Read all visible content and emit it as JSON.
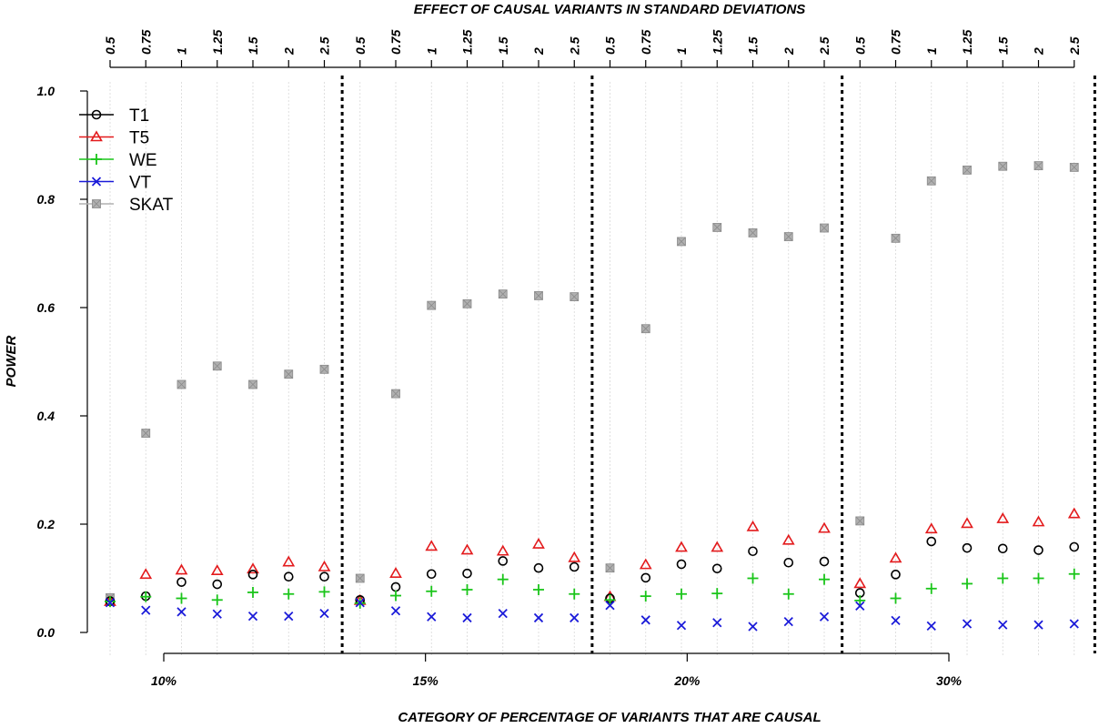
{
  "chart_data": {
    "type": "scatter",
    "title": "",
    "xlabel": "CATEGORY OF PERCENTAGE OF VARIANTS THAT ARE CAUSAL",
    "top_axis_label": "EFFECT OF CAUSAL VARIANTS IN STANDARD DEVIATIONS",
    "ylabel": "POWER",
    "ylim": [
      0,
      1
    ],
    "yticks": [
      "0.0",
      "0.2",
      "0.4",
      "0.6",
      "0.8",
      "1.0"
    ],
    "groups": [
      "10%",
      "15%",
      "20%",
      "30%"
    ],
    "effects": [
      "0.5",
      "0.75",
      "1",
      "1.25",
      "1.5",
      "2",
      "2.5"
    ],
    "legend_position": "top-left",
    "series": [
      {
        "name": "T1",
        "color": "#000000",
        "marker": "circle",
        "values": [
          0.058,
          0.067,
          0.093,
          0.089,
          0.107,
          0.103,
          0.103,
          0.06,
          0.084,
          0.108,
          0.109,
          0.132,
          0.119,
          0.121,
          0.063,
          0.101,
          0.126,
          0.118,
          0.15,
          0.129,
          0.131,
          0.073,
          0.107,
          0.168,
          0.156,
          0.155,
          0.152,
          0.158
        ]
      },
      {
        "name": "T5",
        "color": "#e31a1c",
        "marker": "triangle",
        "values": [
          0.057,
          0.107,
          0.115,
          0.114,
          0.117,
          0.13,
          0.121,
          0.059,
          0.109,
          0.159,
          0.152,
          0.15,
          0.163,
          0.138,
          0.066,
          0.125,
          0.157,
          0.157,
          0.195,
          0.17,
          0.192,
          0.09,
          0.137,
          0.191,
          0.201,
          0.21,
          0.204,
          0.219
        ]
      },
      {
        "name": "WE",
        "color": "#1ac51a",
        "marker": "plus",
        "values": [
          0.057,
          0.066,
          0.063,
          0.06,
          0.074,
          0.071,
          0.075,
          0.054,
          0.068,
          0.076,
          0.079,
          0.098,
          0.079,
          0.071,
          0.06,
          0.067,
          0.071,
          0.072,
          0.1,
          0.071,
          0.098,
          0.059,
          0.063,
          0.081,
          0.09,
          0.1,
          0.1,
          0.108
        ]
      },
      {
        "name": "VT",
        "color": "#1a1ad9",
        "marker": "x",
        "values": [
          0.055,
          0.041,
          0.038,
          0.034,
          0.03,
          0.03,
          0.035,
          0.055,
          0.04,
          0.029,
          0.027,
          0.035,
          0.027,
          0.027,
          0.05,
          0.023,
          0.013,
          0.018,
          0.011,
          0.02,
          0.029,
          0.049,
          0.022,
          0.012,
          0.016,
          0.014,
          0.014,
          0.016
        ]
      },
      {
        "name": "SKAT",
        "color": "#b0b0b0",
        "marker": "square",
        "values": [
          0.064,
          0.368,
          0.458,
          0.492,
          0.458,
          0.477,
          0.486,
          0.1,
          0.441,
          0.604,
          0.607,
          0.625,
          0.622,
          0.62,
          0.119,
          0.561,
          0.722,
          0.748,
          0.738,
          0.731,
          0.747,
          0.206,
          0.728,
          0.834,
          0.854,
          0.861,
          0.862,
          0.859
        ]
      }
    ]
  }
}
